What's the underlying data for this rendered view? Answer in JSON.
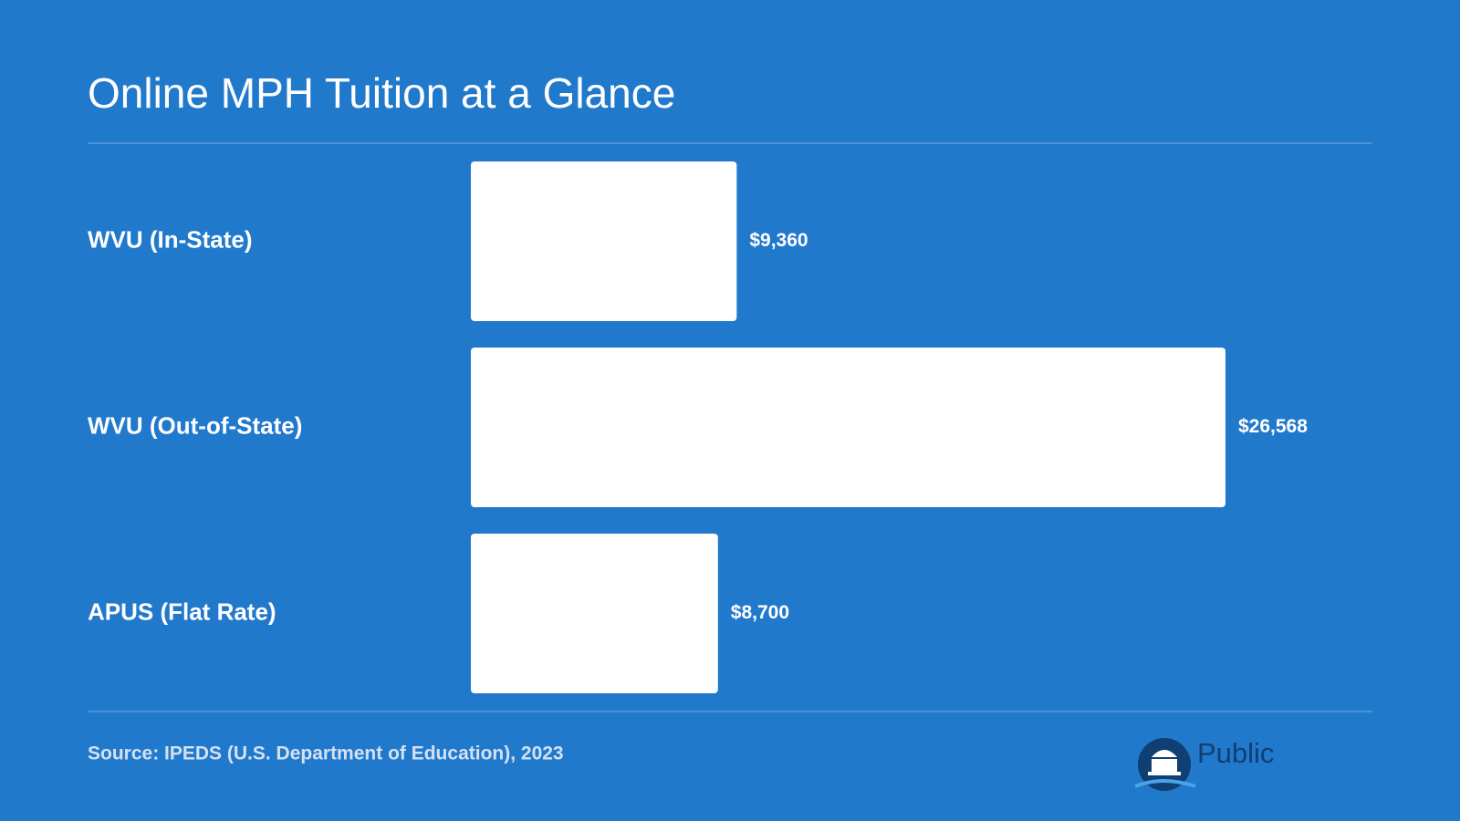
{
  "chart_data": {
    "type": "bar",
    "orientation": "horizontal",
    "title": "Online MPH Tuition at a Glance",
    "categories": [
      "WVU (In-State)",
      "WVU (Out-of-State)",
      "APUS (Flat Rate)"
    ],
    "values": [
      9360,
      26568,
      8700
    ],
    "value_labels": [
      "$9,360",
      "$26,568",
      "$8,700"
    ],
    "color": "#ffffff",
    "source": "Source: IPEDS (U.S. Department of Education), 2023",
    "logo": "Public"
  }
}
